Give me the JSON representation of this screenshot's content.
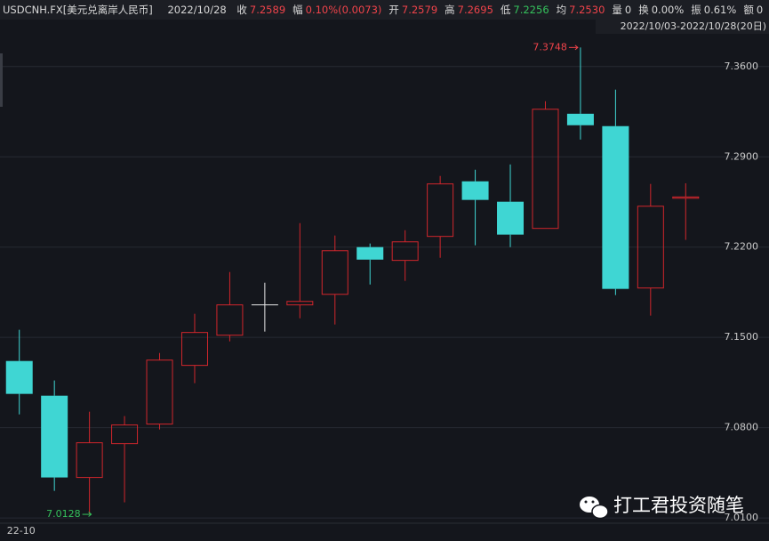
{
  "header": {
    "symbol": "USDCNH.FX[美元兑离岸人民币]",
    "date": "2022/10/28",
    "items": [
      {
        "label": "收",
        "value": "7.2589",
        "color": "#f0434a"
      },
      {
        "label": "幅",
        "value": "0.10%(0.0073)",
        "color": "#f0434a"
      },
      {
        "label": "开",
        "value": "7.2579",
        "color": "#f0434a"
      },
      {
        "label": "高",
        "value": "7.2695",
        "color": "#f0434a"
      },
      {
        "label": "低",
        "value": "7.2256",
        "color": "#35c25c"
      },
      {
        "label": "均",
        "value": "7.2530",
        "color": "#f0434a"
      },
      {
        "label": "量",
        "value": "0",
        "color": "#d8d8d8"
      },
      {
        "label": "换",
        "value": "0.00%",
        "color": "#d8d8d8"
      },
      {
        "label": "振",
        "value": "0.61%",
        "color": "#d8d8d8"
      },
      {
        "label": "额",
        "value": "0",
        "color": "#d8d8d8"
      }
    ],
    "range": "2022/10/03-2022/10/28(20日)"
  },
  "chart_data": {
    "type": "candlestick",
    "categories": [
      "22-10",
      null,
      null,
      null,
      null,
      null,
      null,
      null,
      null,
      null,
      null,
      null,
      null,
      null,
      null,
      null,
      null,
      null,
      null,
      null
    ],
    "open": [
      7.1317,
      7.1048,
      7.0414,
      7.0676,
      7.0828,
      7.1283,
      7.1517,
      7.1752,
      7.1752,
      7.1834,
      7.22,
      7.2097,
      7.2283,
      7.271,
      7.2552,
      7.2345,
      7.3234,
      7.3138,
      7.1883,
      7.2579
    ],
    "high": [
      7.1559,
      7.1166,
      7.0924,
      7.089,
      7.1379,
      7.1683,
      7.2007,
      7.1924,
      7.2386,
      7.229,
      7.2228,
      7.2331,
      7.2752,
      7.28,
      7.2841,
      7.3331,
      7.3748,
      7.3421,
      7.269,
      7.2695
    ],
    "low": [
      7.0903,
      7.031,
      7.0128,
      7.0221,
      7.0786,
      7.1145,
      7.1469,
      7.1545,
      7.1648,
      7.16,
      7.191,
      7.1938,
      7.2117,
      7.2214,
      7.22,
      7.2345,
      7.3034,
      7.1828,
      7.1669,
      7.2256
    ],
    "close": [
      7.1062,
      7.0414,
      7.0683,
      7.0821,
      7.1324,
      7.1538,
      7.1752,
      7.1752,
      7.1779,
      7.2172,
      7.2103,
      7.2241,
      7.269,
      7.2566,
      7.2297,
      7.3269,
      7.3145,
      7.1876,
      7.2517,
      7.2589
    ],
    "up_color": "#d0262c",
    "down_color": "#3fd6d3",
    "flat_color": "#e8e8e8",
    "ylim": [
      7.008,
      7.384
    ],
    "yticks": [
      {
        "value": 7.01,
        "label": "7.0100"
      },
      {
        "value": 7.08,
        "label": "7.0800"
      },
      {
        "value": 7.15,
        "label": "7.1500"
      },
      {
        "value": 7.22,
        "label": "7.2200"
      },
      {
        "value": 7.29,
        "label": "7.2900"
      },
      {
        "value": 7.36,
        "label": "7.3600"
      }
    ],
    "grid": true,
    "annotations": [
      {
        "text": "7.3748",
        "index": 16,
        "color": "#f0434a"
      },
      {
        "text": "7.0128",
        "index": 2,
        "color": "#35c25c"
      }
    ]
  },
  "watermark": "打工君投资随笔"
}
